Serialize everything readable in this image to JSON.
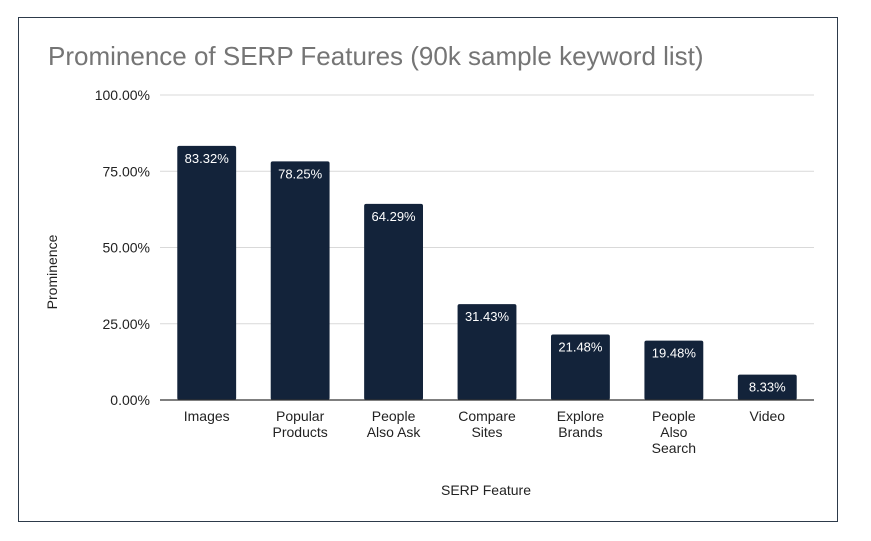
{
  "chart_data": {
    "type": "bar",
    "title": "Prominence of SERP Features (90k sample keyword list)",
    "xlabel": "SERP Feature",
    "ylabel": "Prominence",
    "categories": [
      [
        "Images"
      ],
      [
        "Popular",
        "Products"
      ],
      [
        "People",
        "Also Ask"
      ],
      [
        "Compare",
        "Sites"
      ],
      [
        "Explore",
        "Brands"
      ],
      [
        "People",
        "Also",
        "Search"
      ],
      [
        "Video"
      ]
    ],
    "values": [
      83.32,
      78.25,
      64.29,
      31.43,
      21.48,
      19.48,
      8.33
    ],
    "data_labels": [
      "83.32%",
      "78.25%",
      "64.29%",
      "31.43%",
      "21.48%",
      "19.48%",
      "8.33%"
    ],
    "y_ticks": [
      0,
      25,
      50,
      75,
      100
    ],
    "y_tick_labels": [
      "0.00%",
      "25.00%",
      "50.00%",
      "75.00%",
      "100.00%"
    ],
    "ylim": [
      0,
      100
    ],
    "grid": true,
    "legend": "none",
    "bar_color": "#13233a"
  }
}
